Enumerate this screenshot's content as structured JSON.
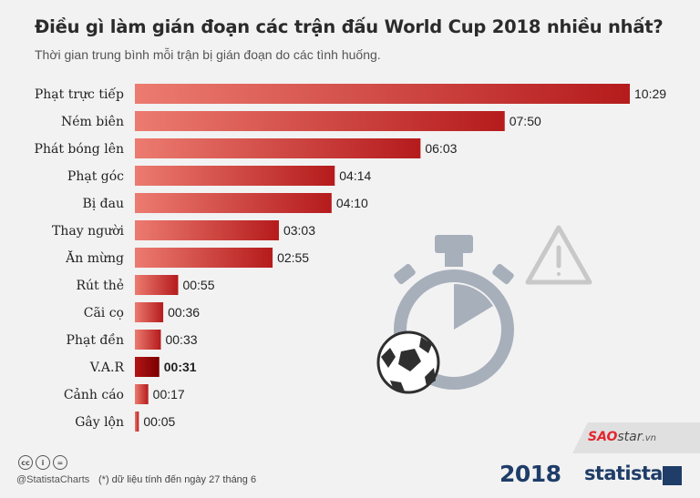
{
  "header": {
    "title": "Điều gì làm gián đoạn các trận đấu World Cup 2018 nhiều nhất?",
    "subtitle": "Thời gian trung bình mỗi trận bị gián đoạn do các tình huống."
  },
  "footer": {
    "handle": "@StatistaCharts",
    "note": "(*) dữ liệu tính đến ngày 27 tháng 6",
    "cc_icons": [
      "cc",
      "i",
      "="
    ],
    "worldcup_logo": "2018",
    "brand": "statista",
    "watermark": {
      "sao": "SAO",
      "star": "star",
      "vn": ".vn"
    }
  },
  "chart_data": {
    "type": "bar",
    "orientation": "horizontal",
    "title": "Điều gì làm gián đoạn các trận đấu World Cup 2018 nhiều nhất?",
    "subtitle": "Thời gian trung bình mỗi trận bị gián đoạn do các tình huống.",
    "categories": [
      "Phạt trực tiếp",
      "Ném biên",
      "Phát bóng lên",
      "Phạt góc",
      "Bị đau",
      "Thay người",
      "Ăn mừng",
      "Rút thẻ",
      "Cãi cọ",
      "Phạt đền",
      "V.A.R",
      "Cảnh cáo",
      "Gây lộn"
    ],
    "value_labels": [
      "10:29",
      "07:50",
      "06:03",
      "04:14",
      "04:10",
      "03:03",
      "02:55",
      "00:55",
      "00:36",
      "00:33",
      "00:31",
      "00:17",
      "00:05"
    ],
    "values_seconds": [
      629,
      470,
      363,
      254,
      250,
      183,
      175,
      55,
      36,
      33,
      31,
      17,
      5
    ],
    "highlight_index": 10,
    "colors": {
      "bar_light": "#ec7b70",
      "bar_dark": "#b51b1c",
      "highlight_light": "#b31515",
      "highlight_dark": "#7a0000"
    },
    "grid": false,
    "legend": "none"
  }
}
